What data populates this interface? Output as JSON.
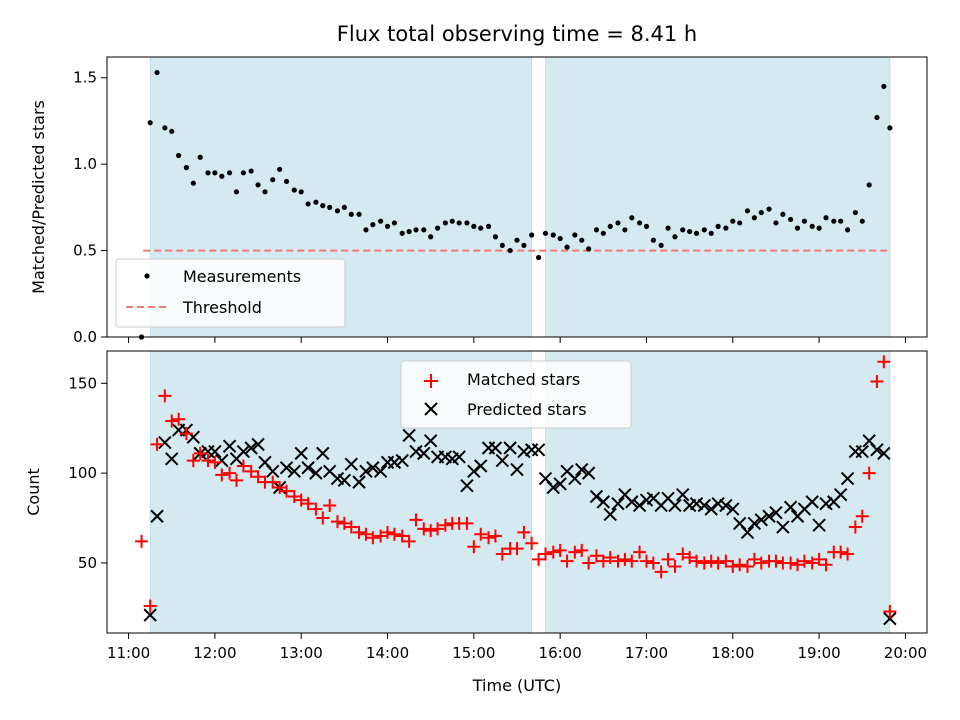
{
  "chart_data": [
    {
      "type": "scatter",
      "title": "Flux total observing time = 8.41 h",
      "xlabel": "",
      "ylabel": "Matched/Predicted stars",
      "ylim": [
        0,
        1.62
      ],
      "yticks": [
        0.0,
        0.5,
        1.0,
        1.5
      ],
      "ytick_labels": [
        "0.0",
        "0.5",
        "1.0",
        "1.5"
      ],
      "grid": false,
      "legend_position": "lower-left",
      "shaded_intervals": [
        [
          11.25,
          15.67
        ],
        [
          15.83,
          19.82
        ]
      ],
      "shade_color": "#d4eaf0",
      "series": [
        {
          "name": "Measurements",
          "kind": "points",
          "color": "#000000",
          "x": [
            11.15,
            11.25,
            11.33,
            11.42,
            11.5,
            11.58,
            11.67,
            11.75,
            11.83,
            11.92,
            12.0,
            12.08,
            12.17,
            12.25,
            12.33,
            12.42,
            12.5,
            12.58,
            12.67,
            12.75,
            12.83,
            12.92,
            13.0,
            13.08,
            13.17,
            13.25,
            13.33,
            13.42,
            13.5,
            13.58,
            13.67,
            13.75,
            13.83,
            13.92,
            14.0,
            14.08,
            14.17,
            14.25,
            14.33,
            14.42,
            14.5,
            14.58,
            14.67,
            14.75,
            14.83,
            14.92,
            15.0,
            15.08,
            15.17,
            15.25,
            15.33,
            15.42,
            15.5,
            15.58,
            15.67,
            15.75,
            15.83,
            15.92,
            16.0,
            16.08,
            16.17,
            16.25,
            16.33,
            16.42,
            16.5,
            16.58,
            16.67,
            16.75,
            16.83,
            16.92,
            17.0,
            17.08,
            17.17,
            17.25,
            17.33,
            17.42,
            17.5,
            17.58,
            17.67,
            17.75,
            17.83,
            17.92,
            18.0,
            18.08,
            18.17,
            18.25,
            18.33,
            18.42,
            18.5,
            18.58,
            18.67,
            18.75,
            18.83,
            18.92,
            19.0,
            19.08,
            19.17,
            19.25,
            19.33,
            19.42,
            19.5,
            19.58,
            19.67,
            19.75,
            19.82
          ],
          "y": [
            0.0,
            1.24,
            1.53,
            1.21,
            1.19,
            1.05,
            0.98,
            0.89,
            1.04,
            0.95,
            0.95,
            0.93,
            0.95,
            0.84,
            0.95,
            0.96,
            0.88,
            0.84,
            0.91,
            0.97,
            0.9,
            0.85,
            0.84,
            0.77,
            0.78,
            0.76,
            0.75,
            0.73,
            0.75,
            0.71,
            0.71,
            0.62,
            0.65,
            0.67,
            0.64,
            0.66,
            0.6,
            0.61,
            0.62,
            0.62,
            0.58,
            0.63,
            0.66,
            0.67,
            0.66,
            0.66,
            0.64,
            0.63,
            0.64,
            0.58,
            0.53,
            0.5,
            0.56,
            0.53,
            0.59,
            0.46,
            0.6,
            0.59,
            0.57,
            0.52,
            0.59,
            0.56,
            0.51,
            0.62,
            0.6,
            0.64,
            0.66,
            0.62,
            0.69,
            0.66,
            0.64,
            0.56,
            0.53,
            0.63,
            0.58,
            0.62,
            0.61,
            0.6,
            0.62,
            0.6,
            0.64,
            0.63,
            0.67,
            0.66,
            0.73,
            0.69,
            0.72,
            0.74,
            0.66,
            0.71,
            0.68,
            0.63,
            0.67,
            0.64,
            0.63,
            0.69,
            0.67,
            0.67,
            0.62,
            0.72,
            0.67,
            0.88,
            1.27,
            1.45,
            1.21
          ]
        },
        {
          "name": "Threshold",
          "kind": "dashed-line",
          "color": "#f07a7a",
          "x": [
            11.17,
            19.82
          ],
          "y": [
            0.5,
            0.5
          ]
        }
      ]
    },
    {
      "type": "scatter",
      "title": "",
      "xlabel": "Time (UTC)",
      "ylabel": "Count",
      "xlim": [
        10.75,
        20.25
      ],
      "ylim": [
        11,
        168
      ],
      "xticks": [
        11,
        12,
        13,
        14,
        15,
        16,
        17,
        18,
        19,
        20
      ],
      "xtick_labels": [
        "11:00",
        "12:00",
        "13:00",
        "14:00",
        "15:00",
        "16:00",
        "17:00",
        "18:00",
        "19:00",
        "20:00"
      ],
      "yticks": [
        50,
        100,
        150
      ],
      "ytick_labels": [
        "50",
        "100",
        "150"
      ],
      "grid": false,
      "legend_position": "top-center",
      "shaded_intervals": [
        [
          11.25,
          15.67
        ],
        [
          15.83,
          19.82
        ]
      ],
      "shade_color": "#d4eaf0",
      "series": [
        {
          "name": "Matched stars",
          "kind": "plus",
          "color": "#ff0000",
          "x": [
            11.15,
            11.25,
            11.33,
            11.42,
            11.5,
            11.58,
            11.67,
            11.75,
            11.83,
            11.92,
            12.0,
            12.08,
            12.17,
            12.25,
            12.33,
            12.42,
            12.5,
            12.58,
            12.67,
            12.75,
            12.83,
            12.92,
            13.0,
            13.08,
            13.17,
            13.25,
            13.33,
            13.42,
            13.5,
            13.58,
            13.67,
            13.75,
            13.83,
            13.92,
            14.0,
            14.08,
            14.17,
            14.25,
            14.33,
            14.42,
            14.5,
            14.58,
            14.67,
            14.75,
            14.83,
            14.92,
            15.0,
            15.08,
            15.17,
            15.25,
            15.33,
            15.42,
            15.5,
            15.58,
            15.67,
            15.75,
            15.83,
            15.92,
            16.0,
            16.08,
            16.17,
            16.25,
            16.33,
            16.42,
            16.5,
            16.58,
            16.67,
            16.75,
            16.83,
            16.92,
            17.0,
            17.08,
            17.17,
            17.25,
            17.33,
            17.42,
            17.5,
            17.58,
            17.67,
            17.75,
            17.83,
            17.92,
            18.0,
            18.08,
            18.17,
            18.25,
            18.33,
            18.42,
            18.5,
            18.58,
            18.67,
            18.75,
            18.83,
            18.92,
            19.0,
            19.08,
            19.17,
            19.25,
            19.33,
            19.42,
            19.5,
            19.58,
            19.67,
            19.75,
            19.82
          ],
          "y": [
            62,
            26,
            116,
            143,
            129,
            130,
            122,
            107,
            111,
            107,
            106,
            99,
            100,
            96,
            104,
            101,
            98,
            95,
            95,
            92,
            90,
            87,
            85,
            83,
            80,
            75,
            82,
            73,
            72,
            70,
            67,
            66,
            64,
            65,
            67,
            66,
            65,
            62,
            74,
            69,
            68,
            69,
            71,
            72,
            72,
            72,
            59,
            66,
            64,
            65,
            55,
            58,
            58,
            67,
            61,
            52,
            55,
            56,
            57,
            51,
            56,
            57,
            50,
            54,
            51,
            53,
            51,
            52,
            51,
            56,
            51,
            50,
            45,
            52,
            48,
            55,
            53,
            51,
            50,
            51,
            50,
            51,
            48,
            49,
            48,
            52,
            50,
            51,
            51,
            50,
            50,
            49,
            51,
            50,
            52,
            49,
            56,
            56,
            55,
            70,
            76,
            100,
            151,
            162,
            23
          ]
        },
        {
          "name": "Predicted stars",
          "kind": "x",
          "color": "#000000",
          "x": [
            11.25,
            11.33,
            11.42,
            11.5,
            11.58,
            11.67,
            11.75,
            11.83,
            11.92,
            12.0,
            12.08,
            12.17,
            12.25,
            12.33,
            12.42,
            12.5,
            12.58,
            12.67,
            12.75,
            12.83,
            12.92,
            13.0,
            13.08,
            13.17,
            13.25,
            13.33,
            13.42,
            13.5,
            13.58,
            13.67,
            13.75,
            13.83,
            13.92,
            14.0,
            14.08,
            14.17,
            14.25,
            14.33,
            14.42,
            14.5,
            14.58,
            14.67,
            14.75,
            14.83,
            14.92,
            15.0,
            15.08,
            15.17,
            15.25,
            15.33,
            15.42,
            15.5,
            15.58,
            15.67,
            15.75,
            15.83,
            15.92,
            16.0,
            16.08,
            16.17,
            16.25,
            16.33,
            16.42,
            16.5,
            16.58,
            16.67,
            16.75,
            16.83,
            16.92,
            17.0,
            17.08,
            17.17,
            17.25,
            17.33,
            17.42,
            17.5,
            17.58,
            17.67,
            17.75,
            17.83,
            17.92,
            18.0,
            18.08,
            18.17,
            18.25,
            18.33,
            18.42,
            18.5,
            18.58,
            18.67,
            18.75,
            18.83,
            18.92,
            19.0,
            19.08,
            19.17,
            19.25,
            19.33,
            19.42,
            19.5,
            19.58,
            19.67,
            19.75,
            19.82
          ],
          "y": [
            21,
            76,
            117,
            108,
            124,
            124,
            120,
            111,
            112,
            112,
            107,
            115,
            108,
            112,
            114,
            116,
            106,
            101,
            92,
            103,
            101,
            111,
            103,
            100,
            111,
            101,
            97,
            96,
            105,
            95,
            101,
            103,
            101,
            106,
            106,
            107,
            121,
            112,
            111,
            118,
            109,
            109,
            108,
            109,
            93,
            101,
            104,
            114,
            114,
            107,
            114,
            102,
            112,
            113,
            113,
            97,
            92,
            94,
            101,
            97,
            102,
            100,
            87,
            84,
            77,
            83,
            88,
            84,
            82,
            85,
            86,
            82,
            86,
            82,
            88,
            82,
            83,
            82,
            80,
            83,
            82,
            80,
            72,
            67,
            72,
            74,
            76,
            78,
            70,
            81,
            76,
            80,
            84,
            71,
            83,
            84,
            88,
            97,
            112,
            112,
            118,
            113,
            111,
            19
          ]
        }
      ]
    }
  ]
}
